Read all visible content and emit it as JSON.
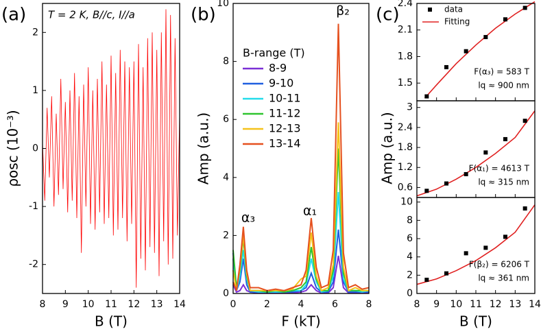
{
  "chart_data": [
    {
      "type": "line",
      "panel_label": "(a)",
      "annotation": "T = 2 K, B//c, I//a",
      "x_label": "B (T)",
      "y_label": "ρosc (10⁻³)",
      "color": "#ff0000",
      "xlim": [
        8,
        14
      ],
      "xticks": [
        8,
        9,
        10,
        11,
        12,
        13,
        14
      ],
      "ylim": [
        -2.5,
        2.5
      ],
      "yticks": [
        -2,
        -1,
        0,
        1,
        2
      ],
      "x": [
        8.0,
        8.1,
        8.2,
        8.3,
        8.4,
        8.5,
        8.6,
        8.7,
        8.8,
        8.9,
        9.0,
        9.1,
        9.2,
        9.3,
        9.4,
        9.5,
        9.6,
        9.7,
        9.8,
        9.9,
        10.0,
        10.1,
        10.2,
        10.3,
        10.4,
        10.5,
        10.6,
        10.7,
        10.8,
        10.9,
        11.0,
        11.1,
        11.2,
        11.3,
        11.4,
        11.5,
        11.6,
        11.7,
        11.8,
        11.9,
        12.0,
        12.1,
        12.2,
        12.3,
        12.4,
        12.5,
        12.6,
        12.7,
        12.8,
        12.9,
        13.0,
        13.1,
        13.2,
        13.3,
        13.4,
        13.5,
        13.6,
        13.7,
        13.8,
        13.9,
        14.0
      ],
      "values": [
        0.1,
        -0.9,
        0.7,
        -0.5,
        0.9,
        -1.0,
        0.6,
        -0.8,
        1.2,
        -0.7,
        0.8,
        -1.1,
        1.0,
        -0.9,
        1.3,
        -1.2,
        0.9,
        -1.8,
        1.1,
        -1.0,
        1.4,
        -1.3,
        1.0,
        -1.4,
        1.2,
        -1.1,
        1.5,
        -1.3,
        1.1,
        -1.2,
        1.6,
        -1.5,
        1.3,
        -1.4,
        1.7,
        -1.2,
        1.5,
        -1.6,
        1.4,
        -1.3,
        1.5,
        -2.4,
        1.8,
        -1.9,
        1.4,
        -2.1,
        1.9,
        -1.7,
        2.0,
        -1.8,
        1.7,
        -2.2,
        2.0,
        -1.6,
        2.4,
        -2.0,
        2.3,
        -1.9,
        1.9,
        -1.5,
        0.6
      ]
    },
    {
      "type": "line",
      "panel_label": "(b)",
      "x_label": "F (kT)",
      "y_label": "Amp (a.u.)",
      "legend_title": "B-range (T)",
      "annotations": [
        "α₃",
        "α₁",
        "β₂"
      ],
      "xlim": [
        0,
        8
      ],
      "xticks": [
        0,
        2,
        4,
        6,
        8
      ],
      "ylim": [
        0,
        10
      ],
      "yticks": [
        0,
        2,
        4,
        6,
        8,
        10
      ],
      "x": [
        0,
        0.2,
        0.4,
        0.6,
        0.8,
        1.0,
        1.5,
        2,
        2.5,
        3,
        3.5,
        4,
        4.3,
        4.6,
        4.9,
        5.2,
        5.6,
        5.9,
        6.2,
        6.5,
        6.8,
        7.2,
        7.6,
        8
      ],
      "series": [
        {
          "name": "8-9",
          "color": "#7a2fd6",
          "values": [
            0.3,
            0.05,
            0.1,
            0.3,
            0.1,
            0.05,
            0.02,
            0.02,
            0.02,
            0.02,
            0.02,
            0.05,
            0.1,
            0.3,
            0.1,
            0.02,
            0.02,
            0.2,
            1.3,
            0.2,
            0.02,
            0.02,
            0.02,
            0.02
          ]
        },
        {
          "name": "9-10",
          "color": "#1f5fe0",
          "values": [
            1.4,
            0.1,
            0.4,
            1.2,
            0.3,
            0.05,
            0.05,
            0.05,
            0.05,
            0.05,
            0.05,
            0.1,
            0.2,
            0.7,
            0.2,
            0.05,
            0.05,
            0.4,
            2.2,
            0.4,
            0.05,
            0.05,
            0.05,
            0.05
          ]
        },
        {
          "name": "10-11",
          "color": "#22dcea",
          "values": [
            1.2,
            0.1,
            0.6,
            1.5,
            0.5,
            0.1,
            0.05,
            0.05,
            0.05,
            0.05,
            0.1,
            0.1,
            0.3,
            1.2,
            0.4,
            0.05,
            0.1,
            0.6,
            3.5,
            0.5,
            0.1,
            0.1,
            0.05,
            0.1
          ]
        },
        {
          "name": "11-12",
          "color": "#2ec42e",
          "values": [
            1.5,
            0.2,
            0.8,
            1.9,
            0.6,
            0.1,
            0.1,
            0.05,
            0.1,
            0.05,
            0.1,
            0.2,
            0.4,
            1.6,
            0.5,
            0.1,
            0.1,
            0.8,
            5.0,
            0.7,
            0.1,
            0.1,
            0.1,
            0.1
          ]
        },
        {
          "name": "12-13",
          "color": "#f5c21a",
          "values": [
            0.8,
            0.1,
            0.9,
            2.0,
            0.7,
            0.1,
            0.1,
            0.1,
            0.1,
            0.1,
            0.15,
            0.5,
            0.6,
            2.1,
            0.6,
            0.1,
            0.2,
            1.0,
            5.9,
            0.9,
            0.1,
            0.2,
            0.1,
            0.1
          ]
        },
        {
          "name": "13-14",
          "color": "#e5501e",
          "values": [
            0.4,
            0.1,
            1.0,
            2.3,
            0.8,
            0.2,
            0.2,
            0.1,
            0.15,
            0.1,
            0.2,
            0.3,
            0.8,
            2.6,
            0.9,
            0.2,
            0.3,
            1.5,
            9.3,
            1.4,
            0.2,
            0.3,
            0.15,
            0.2
          ]
        }
      ]
    },
    {
      "type": "scatter",
      "panel_label": "(c)",
      "x_label": "B (T)",
      "y_label": "Amp (a.u.)",
      "xlim": [
        8,
        14
      ],
      "xticks": [
        8,
        9,
        10,
        11,
        12,
        13,
        14
      ],
      "series": [
        {
          "name": "data",
          "color": "#000000"
        },
        {
          "name": "Fitting",
          "color": "#e02020"
        }
      ],
      "panels": [
        {
          "ylim": [
            1.3,
            2.4
          ],
          "yticks": [
            1.5,
            1.8,
            2.1,
            2.4
          ],
          "annotations": [
            "F(α₃) = 583 T",
            "lq ≈ 900 nm"
          ],
          "data": {
            "x": [
              8.5,
              9.5,
              10.5,
              11.5,
              12.5,
              13.5
            ],
            "values": [
              1.35,
              1.68,
              1.86,
              2.02,
              2.22,
              2.35
            ]
          },
          "fit": {
            "x": [
              8.4,
              9,
              10,
              11,
              12,
              13,
              14
            ],
            "values": [
              1.33,
              1.48,
              1.72,
              1.93,
              2.12,
              2.28,
              2.42
            ]
          }
        },
        {
          "ylim": [
            0.3,
            3.2
          ],
          "yticks": [
            0.6,
            1.2,
            1.8,
            2.4,
            3.0
          ],
          "annotations": [
            "F(α₁) = 4613 T",
            "lq ≈ 315 nm"
          ],
          "data": {
            "x": [
              8.5,
              9.5,
              10.5,
              11.5,
              12.5,
              13.5
            ],
            "values": [
              0.5,
              0.72,
              1.0,
              1.65,
              2.05,
              2.6
            ]
          },
          "fit": {
            "x": [
              8,
              9,
              10,
              11,
              12,
              13,
              14
            ],
            "values": [
              0.35,
              0.55,
              0.85,
              1.2,
              1.62,
              2.1,
              2.9
            ]
          }
        },
        {
          "ylim": [
            0,
            10.5
          ],
          "yticks": [
            0,
            2,
            4,
            6,
            8,
            10
          ],
          "annotations": [
            "F(β₂) = 6206 T",
            "lq ≈ 361 nm"
          ],
          "data": {
            "x": [
              8.5,
              9.5,
              10.5,
              11.5,
              12.5,
              13.5
            ],
            "values": [
              1.5,
              2.2,
              4.4,
              5.0,
              6.2,
              9.3
            ]
          },
          "fit": {
            "x": [
              8,
              9,
              10,
              11,
              12,
              13,
              14
            ],
            "values": [
              1.0,
              1.6,
              2.5,
              3.6,
              5.0,
              6.7,
              9.7
            ]
          }
        }
      ]
    }
  ]
}
